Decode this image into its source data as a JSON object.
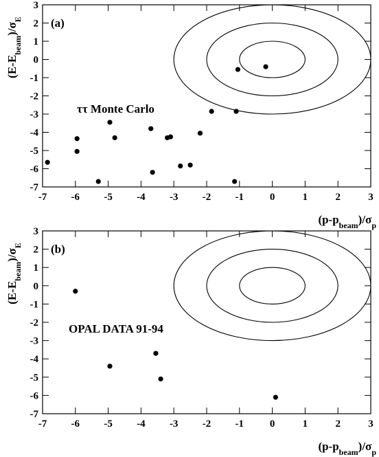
{
  "chart_data": [
    {
      "type": "scatter",
      "panel_label": "(a)",
      "annotation": "ττ Monte Carlo",
      "x": [
        -6.85,
        -5.95,
        -5.95,
        -5.3,
        -4.95,
        -4.8,
        -3.7,
        -3.65,
        -3.2,
        -3.1,
        -2.8,
        -2.5,
        -2.2,
        -1.85,
        -1.15,
        -1.1,
        -1.05,
        -0.2
      ],
      "y": [
        -5.65,
        -4.35,
        -5.05,
        -6.7,
        -3.45,
        -4.3,
        -3.8,
        -6.2,
        -4.3,
        -4.25,
        -5.85,
        -5.8,
        -4.05,
        -2.85,
        -6.7,
        -2.85,
        -0.55,
        -0.4
      ],
      "color": "#000000",
      "contours": [
        1,
        2,
        3
      ],
      "xlim": [
        -7,
        3
      ],
      "ylim": [
        -7,
        3
      ],
      "xticks": [
        -7,
        -6,
        -5,
        -4,
        -3,
        -2,
        -1,
        0,
        1,
        2,
        3
      ],
      "yticks": [
        -7,
        -6,
        -5,
        -4,
        -3,
        -2,
        -1,
        0,
        1,
        2,
        3
      ],
      "xlabel": [
        "(p-p",
        "beam",
        ")/σ",
        "p"
      ],
      "ylabel": [
        "(E-E",
        "beam",
        ")/σ",
        "E"
      ]
    },
    {
      "type": "scatter",
      "panel_label": "(b)",
      "annotation": "OPAL DATA 91-94",
      "x": [
        -6.0,
        -4.95,
        -3.55,
        -3.4,
        0.1
      ],
      "y": [
        -0.3,
        -4.4,
        -3.7,
        -5.1,
        -6.1
      ],
      "color": "#000000",
      "contours": [
        1,
        2,
        3
      ],
      "xlim": [
        -7,
        3
      ],
      "ylim": [
        -7,
        3
      ],
      "xticks": [
        -7,
        -6,
        -5,
        -4,
        -3,
        -2,
        -1,
        0,
        1,
        2,
        3
      ],
      "yticks": [
        -7,
        -6,
        -5,
        -4,
        -3,
        -2,
        -1,
        0,
        1,
        2,
        3
      ],
      "xlabel": [
        "(p-p",
        "beam",
        ")/σ",
        "p"
      ],
      "ylabel": [
        "(E-E",
        "beam",
        ")/σ",
        "E"
      ]
    }
  ]
}
